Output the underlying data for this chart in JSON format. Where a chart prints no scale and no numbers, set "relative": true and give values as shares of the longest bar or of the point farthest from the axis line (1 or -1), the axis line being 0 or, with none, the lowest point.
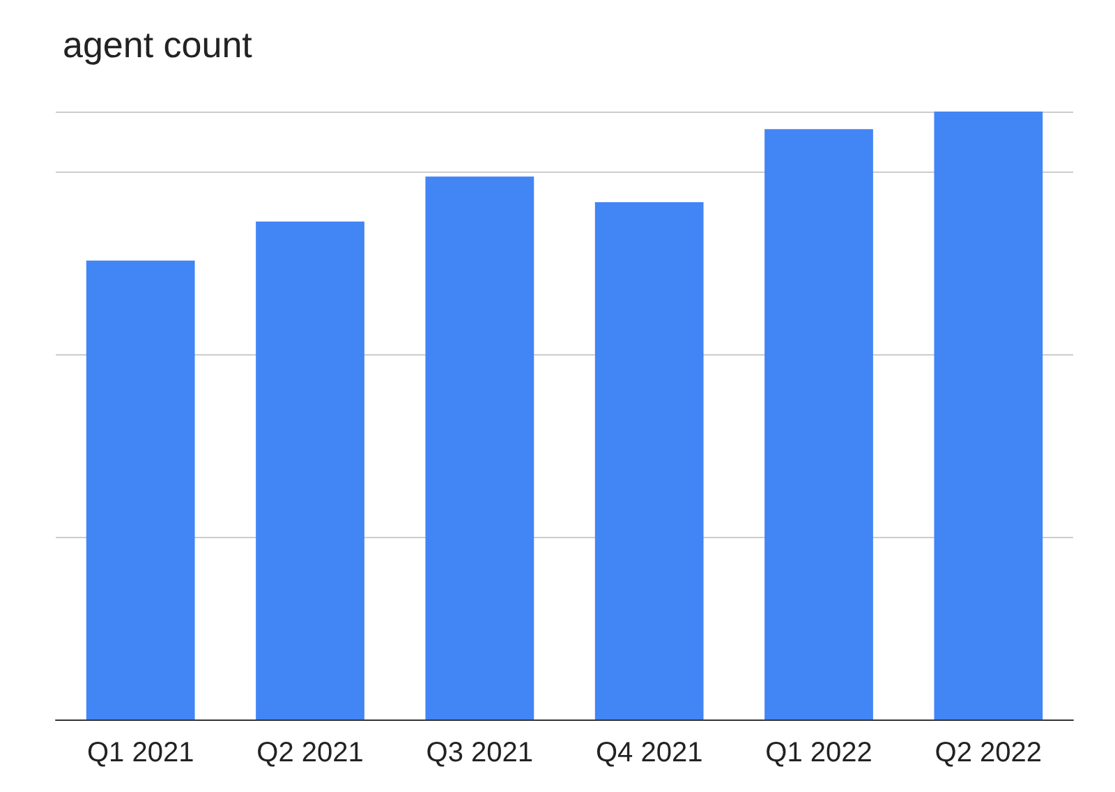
{
  "chart_data": {
    "type": "bar",
    "title": "agent count",
    "relative": true,
    "grid": "y",
    "categories": [
      "Q1 2021",
      "Q2 2021",
      "Q3 2021",
      "Q4 2021",
      "Q1 2022",
      "Q2 2022"
    ],
    "values": [
      0.755,
      0.819,
      0.893,
      0.851,
      0.971,
      1
    ],
    "color": "#4285f4"
  }
}
